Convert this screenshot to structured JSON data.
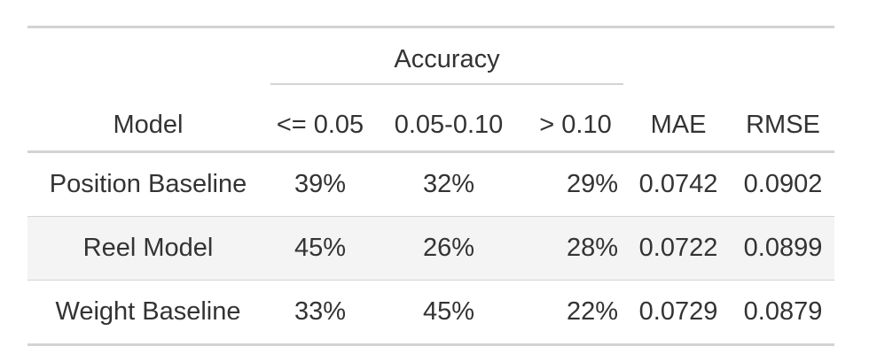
{
  "table": {
    "spanner_label": "Accuracy",
    "columns": {
      "model": "Model",
      "acc_low": "<= 0.05",
      "acc_mid": "0.05-0.10",
      "acc_high": "> 0.10",
      "mae": "MAE",
      "rmse": "RMSE"
    },
    "rows": [
      {
        "model": "Position Baseline",
        "acc_low": "39%",
        "acc_mid": "32%",
        "acc_high": "29%",
        "mae": "0.0742",
        "rmse": "0.0902"
      },
      {
        "model": "Reel Model",
        "acc_low": "45%",
        "acc_mid": "26%",
        "acc_high": "28%",
        "mae": "0.0722",
        "rmse": "0.0899"
      },
      {
        "model": "Weight Baseline",
        "acc_low": "33%",
        "acc_mid": "45%",
        "acc_high": "22%",
        "mae": "0.0729",
        "rmse": "0.0879"
      }
    ],
    "colors": {
      "rule": "#d3d3d3",
      "stripe": "#f4f4f4",
      "text": "#333333"
    }
  }
}
